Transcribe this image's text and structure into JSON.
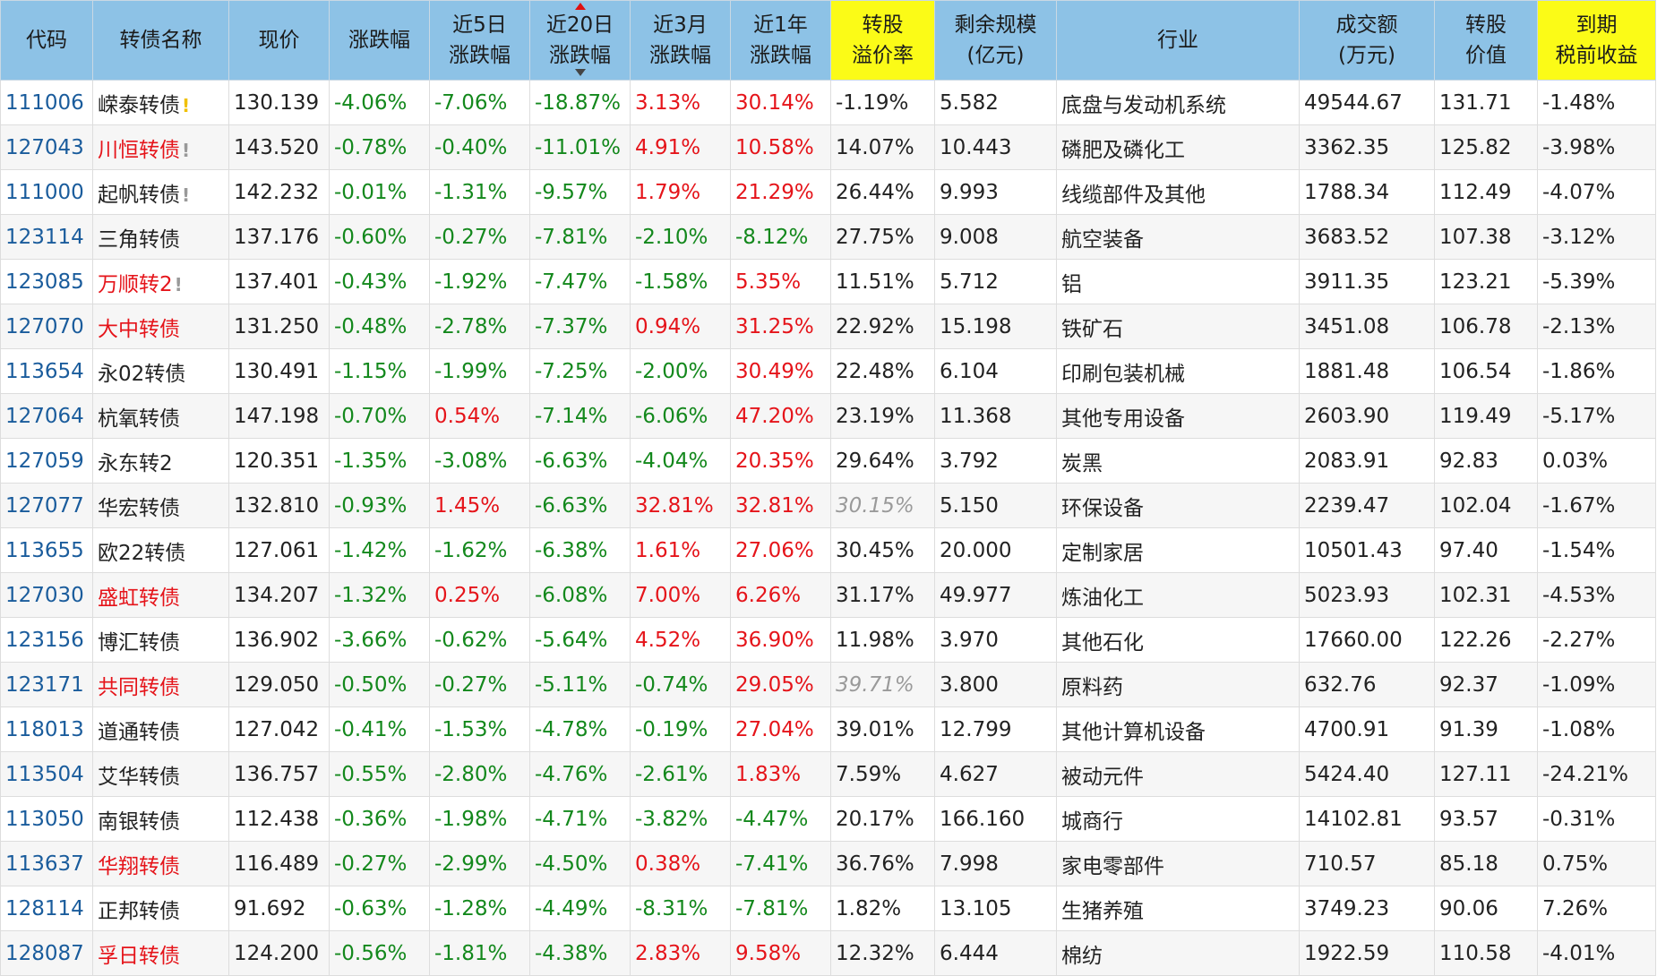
{
  "table": {
    "headers": [
      [
        "代码"
      ],
      [
        "转债名称"
      ],
      [
        "现价"
      ],
      [
        "涨跌幅"
      ],
      [
        "近5日",
        "涨跌幅"
      ],
      [
        "近20日",
        "涨跌幅"
      ],
      [
        "近3月",
        "涨跌幅"
      ],
      [
        "近1年",
        "涨跌幅"
      ],
      [
        "转股",
        "溢价率"
      ],
      [
        "剩余规模",
        "(亿元)"
      ],
      [
        "行业"
      ],
      [
        "成交额",
        "(万元)"
      ],
      [
        "转股",
        "价值"
      ],
      [
        "到期",
        "税前收益"
      ]
    ],
    "rows": [
      {
        "cells": [
          "111006",
          "嵘泰转债",
          "130.139",
          "-4.06%",
          "-7.06%",
          "-18.87%",
          "3.13%",
          "30.14%",
          "-1.19%",
          "5.582",
          "底盘与发动机系统",
          "49544.67",
          "131.71",
          "-1.48%"
        ],
        "flag": "!",
        "flag_color": "#f0c000"
      },
      {
        "cells": [
          "127043",
          "川恒转债",
          "143.520",
          "-0.78%",
          "-0.40%",
          "-11.01%",
          "4.91%",
          "10.58%",
          "14.07%",
          "10.443",
          "磷肥及磷化工",
          "3362.35",
          "125.82",
          "-3.98%"
        ],
        "name_color": "#e5141a",
        "flag": "!",
        "flag_color": "#999999"
      },
      {
        "cells": [
          "111000",
          "起帆转债",
          "142.232",
          "-0.01%",
          "-1.31%",
          "-9.57%",
          "1.79%",
          "21.29%",
          "26.44%",
          "9.993",
          "线缆部件及其他",
          "1788.34",
          "112.49",
          "-4.07%"
        ],
        "flag": "!",
        "flag_color": "#999999"
      },
      {
        "cells": [
          "123114",
          "三角转债",
          "137.176",
          "-0.60%",
          "-0.27%",
          "-7.81%",
          "-2.10%",
          "-8.12%",
          "27.75%",
          "9.008",
          "航空装备",
          "3683.52",
          "107.38",
          "-3.12%"
        ]
      },
      {
        "cells": [
          "123085",
          "万顺转2",
          "137.401",
          "-0.43%",
          "-1.92%",
          "-7.47%",
          "-1.58%",
          "5.35%",
          "11.51%",
          "5.712",
          "铝",
          "3911.35",
          "123.21",
          "-5.39%"
        ],
        "name_color": "#e5141a",
        "flag": "!",
        "flag_color": "#999999"
      },
      {
        "cells": [
          "127070",
          "大中转债",
          "131.250",
          "-0.48%",
          "-2.78%",
          "-7.37%",
          "0.94%",
          "31.25%",
          "22.92%",
          "15.198",
          "铁矿石",
          "3451.08",
          "106.78",
          "-2.13%"
        ],
        "name_color": "#e5141a"
      },
      {
        "cells": [
          "113654",
          "永02转债",
          "130.491",
          "-1.15%",
          "-1.99%",
          "-7.25%",
          "-2.00%",
          "30.49%",
          "22.48%",
          "6.104",
          "印刷包装机械",
          "1881.48",
          "106.54",
          "-1.86%"
        ]
      },
      {
        "cells": [
          "127064",
          "杭氧转债",
          "147.198",
          "-0.70%",
          "0.54%",
          "-7.14%",
          "-6.06%",
          "47.20%",
          "23.19%",
          "11.368",
          "其他专用设备",
          "2603.90",
          "119.49",
          "-5.17%"
        ]
      },
      {
        "cells": [
          "127059",
          "永东转2",
          "120.351",
          "-1.35%",
          "-3.08%",
          "-6.63%",
          "-4.04%",
          "20.35%",
          "29.64%",
          "3.792",
          "炭黑",
          "2083.91",
          "92.83",
          "0.03%"
        ]
      },
      {
        "cells": [
          "127077",
          "华宏转债",
          "132.810",
          "-0.93%",
          "1.45%",
          "-6.63%",
          "32.81%",
          "32.81%",
          "30.15%",
          "5.150",
          "环保设备",
          "2239.47",
          "102.04",
          "-1.67%"
        ],
        "premium_italic": true
      },
      {
        "cells": [
          "113655",
          "欧22转债",
          "127.061",
          "-1.42%",
          "-1.62%",
          "-6.38%",
          "1.61%",
          "27.06%",
          "30.45%",
          "20.000",
          "定制家居",
          "10501.43",
          "97.40",
          "-1.54%"
        ]
      },
      {
        "cells": [
          "127030",
          "盛虹转债",
          "134.207",
          "-1.32%",
          "0.25%",
          "-6.08%",
          "7.00%",
          "6.26%",
          "31.17%",
          "49.977",
          "炼油化工",
          "5023.93",
          "102.31",
          "-4.53%"
        ],
        "name_color": "#e5141a"
      },
      {
        "cells": [
          "123156",
          "博汇转债",
          "136.902",
          "-3.66%",
          "-0.62%",
          "-5.64%",
          "4.52%",
          "36.90%",
          "11.98%",
          "3.970",
          "其他石化",
          "17660.00",
          "122.26",
          "-2.27%"
        ]
      },
      {
        "cells": [
          "123171",
          "共同转债",
          "129.050",
          "-0.50%",
          "-0.27%",
          "-5.11%",
          "-0.74%",
          "29.05%",
          "39.71%",
          "3.800",
          "原料药",
          "632.76",
          "92.37",
          "-1.09%"
        ],
        "name_color": "#e5141a",
        "premium_italic": true
      },
      {
        "cells": [
          "118013",
          "道通转债",
          "127.042",
          "-0.41%",
          "-1.53%",
          "-4.78%",
          "-0.19%",
          "27.04%",
          "39.01%",
          "12.799",
          "其他计算机设备",
          "4700.91",
          "91.39",
          "-1.08%"
        ]
      },
      {
        "cells": [
          "113504",
          "艾华转债",
          "136.757",
          "-0.55%",
          "-2.80%",
          "-4.76%",
          "-2.61%",
          "1.83%",
          "7.59%",
          "4.627",
          "被动元件",
          "5424.40",
          "127.11",
          "-24.21%"
        ]
      },
      {
        "cells": [
          "113050",
          "南银转债",
          "112.438",
          "-0.36%",
          "-1.98%",
          "-4.71%",
          "-3.82%",
          "-4.47%",
          "20.17%",
          "166.160",
          "城商行",
          "14102.81",
          "93.57",
          "-0.31%"
        ]
      },
      {
        "cells": [
          "113637",
          "华翔转债",
          "116.489",
          "-0.27%",
          "-2.99%",
          "-4.50%",
          "0.38%",
          "-7.41%",
          "36.76%",
          "7.998",
          "家电零部件",
          "710.57",
          "85.18",
          "0.75%"
        ],
        "name_color": "#e5141a"
      },
      {
        "cells": [
          "128114",
          "正邦转债",
          "91.692",
          "-0.63%",
          "-1.28%",
          "-4.49%",
          "-8.31%",
          "-7.81%",
          "1.82%",
          "13.105",
          "生猪养殖",
          "3749.23",
          "90.06",
          "7.26%"
        ]
      },
      {
        "cells": [
          "128087",
          "孚日转债",
          "124.200",
          "-0.56%",
          "-1.81%",
          "-4.38%",
          "2.83%",
          "9.58%",
          "12.32%",
          "6.444",
          "棉纺",
          "1922.59",
          "110.58",
          "-4.01%"
        ],
        "name_color": "#e5141a"
      }
    ]
  }
}
